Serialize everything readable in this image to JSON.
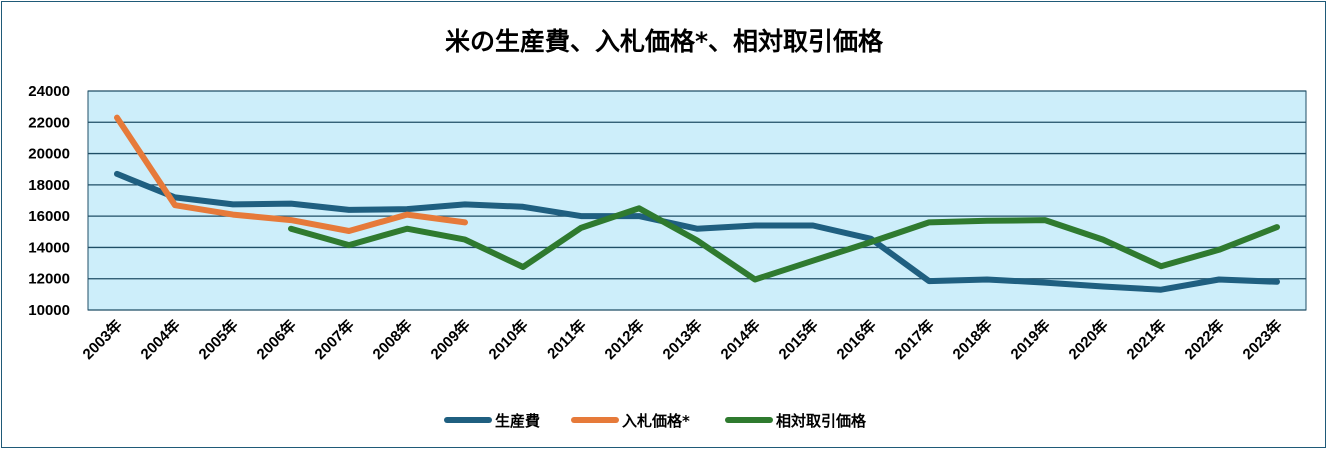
{
  "chart_data": {
    "type": "line",
    "title": "米の生産費、入札価格*、相対取引価格",
    "xlabel": "",
    "ylabel": "",
    "categories": [
      "2003年",
      "2004年",
      "2005年",
      "2006年",
      "2007年",
      "2008年",
      "2009年",
      "2010年",
      "2011年",
      "2012年",
      "2013年",
      "2014年",
      "2015年",
      "2016年",
      "2017年",
      "2018年",
      "2019年",
      "2020年",
      "2021年",
      "2022年",
      "2023年"
    ],
    "ylim": [
      10000,
      24000
    ],
    "yticks": [
      "10000",
      "12000",
      "14000",
      "16000",
      "18000",
      "20000",
      "22000",
      "24000"
    ],
    "grid": true,
    "legend_position": "bottom",
    "plot_background": "#cdeefa",
    "series": [
      {
        "name": "生産費",
        "color": "#1f5f80",
        "values": [
          18700,
          17200,
          16750,
          16800,
          16400,
          16450,
          16750,
          16600,
          16000,
          16000,
          15200,
          15400,
          15400,
          14550,
          11850,
          11950,
          11750,
          11500,
          11300,
          11950,
          11800
        ]
      },
      {
        "name": "入札価格*",
        "color": "#e67a3a",
        "values": [
          22300,
          16700,
          16100,
          15750,
          15050,
          16100,
          15600,
          null,
          null,
          null,
          null,
          null,
          null,
          null,
          null,
          null,
          null,
          null,
          null,
          null,
          null
        ]
      },
      {
        "name": "相対取引価格",
        "color": "#2f7a2f",
        "values": [
          null,
          null,
          null,
          15200,
          14150,
          15200,
          14500,
          12750,
          15250,
          16500,
          14450,
          11950,
          13150,
          14350,
          15600,
          15700,
          15750,
          14500,
          12800,
          13850,
          15300
        ]
      }
    ]
  }
}
